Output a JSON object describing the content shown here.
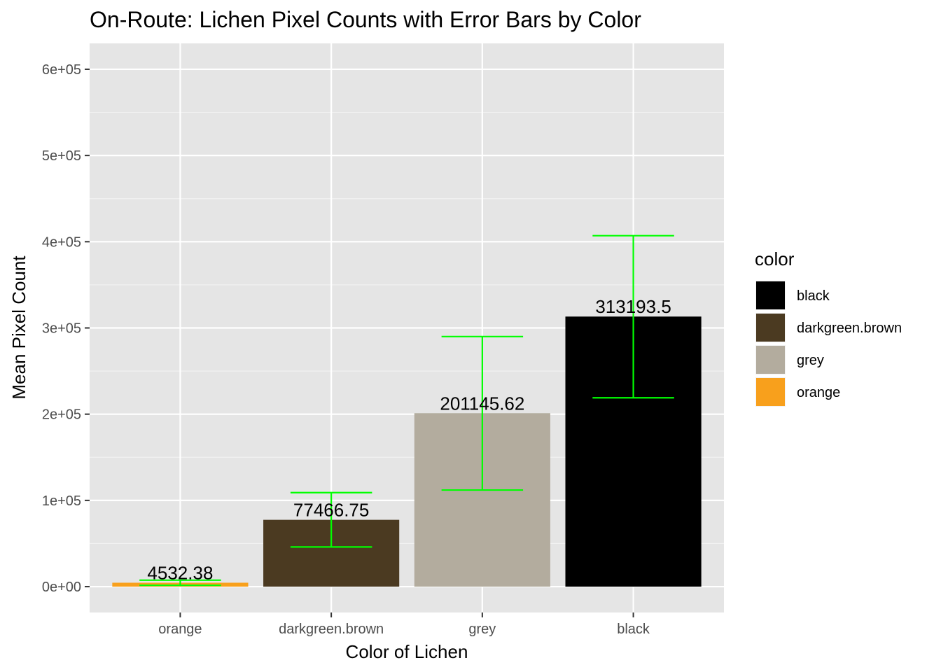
{
  "chart_data": {
    "type": "bar",
    "title": "On-Route: Lichen Pixel Counts with Error Bars by Color",
    "xlabel": "Color of Lichen",
    "ylabel": "Mean Pixel Count",
    "categories": [
      "orange",
      "darkgreen.brown",
      "grey",
      "black"
    ],
    "values": [
      4532.38,
      77466.75,
      201145.62,
      313193.5
    ],
    "value_labels": [
      "4532.38",
      "77466.75",
      "201145.62",
      "313193.5"
    ],
    "error_low": [
      1500,
      46000,
      112000,
      219000
    ],
    "error_high": [
      7500,
      109000,
      290000,
      407000
    ],
    "bar_colors": [
      "#F8A01C",
      "#4B3A21",
      "#B3AC9E",
      "#000000"
    ],
    "error_bar_color": "#00FF00",
    "ylim": [
      -30000,
      630000
    ],
    "y_ticks": [
      0,
      100000,
      200000,
      300000,
      400000,
      500000,
      600000
    ],
    "y_tick_labels": [
      "0e+00",
      "1e+05",
      "2e+05",
      "3e+05",
      "4e+05",
      "5e+05",
      "6e+05"
    ],
    "grid": true,
    "panel_background": "#E5E5E5",
    "legend": {
      "title": "color",
      "position": "right",
      "entries": [
        {
          "label": "black",
          "color": "#000000"
        },
        {
          "label": "darkgreen.brown",
          "color": "#4B3A21"
        },
        {
          "label": "grey",
          "color": "#B3AC9E"
        },
        {
          "label": "orange",
          "color": "#F8A01C"
        }
      ]
    }
  }
}
